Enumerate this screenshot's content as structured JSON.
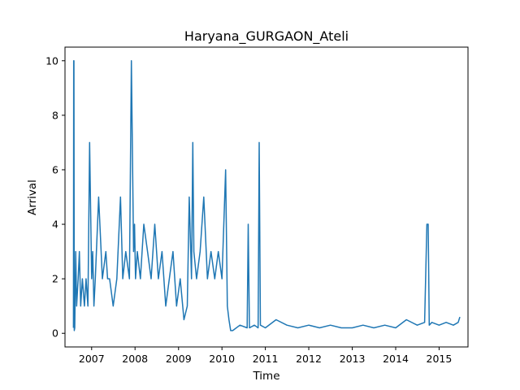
{
  "chart_data": {
    "type": "line",
    "title": "Haryana_GURGAON_Ateli",
    "xlabel": "Time",
    "ylabel": "Arrival",
    "xlim": [
      "2006-05-22",
      "2015-09-01"
    ],
    "ylim": [
      -0.5,
      10.5
    ],
    "x_ticks": [
      "2007",
      "2008",
      "2009",
      "2010",
      "2011",
      "2012",
      "2013",
      "2014",
      "2015"
    ],
    "y_ticks": [
      "0",
      "2",
      "4",
      "6",
      "8",
      "10"
    ],
    "grid": false,
    "line_color": "#1f77b4",
    "series": [
      {
        "x": [
          "2006-08-01",
          "2006-08-03",
          "2006-08-05",
          "2006-08-08",
          "2006-08-12",
          "2006-08-20",
          "2006-08-28",
          "2006-09-10",
          "2006-09-20",
          "2006-10-01",
          "2006-10-15",
          "2006-11-01",
          "2006-11-15",
          "2006-12-01",
          "2006-12-15",
          "2007-01-01",
          "2007-01-10",
          "2007-01-20",
          "2007-02-01",
          "2007-03-01",
          "2007-04-01",
          "2007-05-01",
          "2007-05-15",
          "2007-06-01",
          "2007-07-01",
          "2007-08-01",
          "2007-09-01",
          "2007-09-20",
          "2007-10-15",
          "2007-11-15",
          "2007-12-01",
          "2007-12-20",
          "2007-12-28",
          "2008-01-05",
          "2008-01-20",
          "2008-02-15",
          "2008-03-15",
          "2008-04-15",
          "2008-05-15",
          "2008-06-15",
          "2008-07-15",
          "2008-08-15",
          "2008-09-15",
          "2008-10-15",
          "2008-11-15",
          "2008-12-15",
          "2009-01-15",
          "2009-02-15",
          "2009-03-15",
          "2009-04-01",
          "2009-04-20",
          "2009-05-01",
          "2009-05-10",
          "2009-06-01",
          "2009-07-01",
          "2009-08-01",
          "2009-09-01",
          "2009-10-01",
          "2009-11-01",
          "2009-12-01",
          "2010-01-01",
          "2010-02-01",
          "2010-02-15",
          "2010-03-01",
          "2010-03-15",
          "2010-04-01",
          "2010-06-01",
          "2010-08-01",
          "2010-08-10",
          "2010-08-20",
          "2010-10-01",
          "2010-11-01",
          "2010-11-10",
          "2010-11-20",
          "2011-01-01",
          "2011-04-01",
          "2011-07-01",
          "2011-10-01",
          "2012-01-01",
          "2012-04-01",
          "2012-07-01",
          "2012-10-01",
          "2013-01-01",
          "2013-04-01",
          "2013-07-01",
          "2013-10-01",
          "2014-01-01",
          "2014-04-01",
          "2014-07-01",
          "2014-09-01",
          "2014-09-20",
          "2014-10-01",
          "2014-10-10",
          "2014-11-01",
          "2015-01-01",
          "2015-03-01",
          "2015-05-01",
          "2015-06-10",
          "2015-06-25"
        ],
        "values": [
          0.2,
          10,
          10,
          0.1,
          0.2,
          3,
          1,
          2,
          3,
          1,
          2,
          1,
          2,
          1,
          7,
          2,
          3,
          1,
          2,
          5,
          2,
          3,
          2,
          2,
          1,
          2,
          5,
          2,
          3,
          2,
          10,
          3,
          4,
          2,
          3,
          2,
          4,
          3,
          2,
          4,
          2,
          3,
          1,
          2,
          3,
          1,
          2,
          0.5,
          1,
          5,
          2,
          7,
          3,
          2,
          3,
          5,
          2,
          3,
          2,
          3,
          2,
          6,
          1,
          0.5,
          0.1,
          0.1,
          0.3,
          0.2,
          4,
          0.2,
          0.3,
          0.2,
          7,
          0.3,
          0.2,
          0.5,
          0.3,
          0.2,
          0.3,
          0.2,
          0.3,
          0.2,
          0.2,
          0.3,
          0.2,
          0.3,
          0.2,
          0.5,
          0.3,
          0.4,
          4,
          4,
          0.3,
          0.4,
          0.3,
          0.4,
          0.3,
          0.4,
          0.6
        ]
      }
    ]
  }
}
